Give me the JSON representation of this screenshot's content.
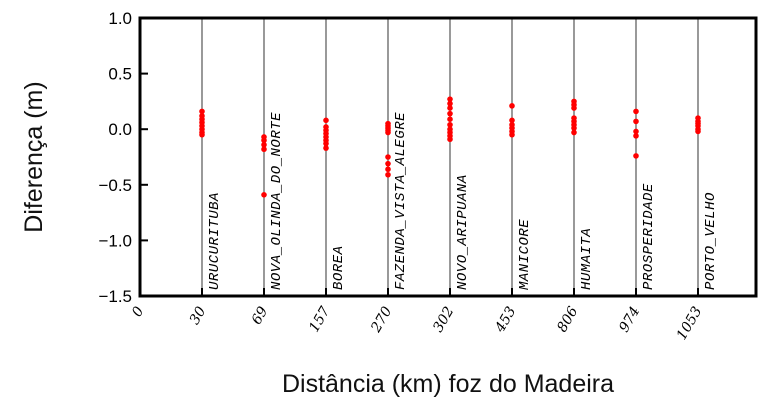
{
  "chart_data": {
    "type": "scatter",
    "xlabel": "Distância (km) foz do Madeira",
    "ylabel": "Diferença (m)",
    "ylim": [
      -1.5,
      1.0
    ],
    "yticks": [
      1.0,
      0.5,
      0.0,
      -0.5,
      -1.0,
      -1.5
    ],
    "ytick_labels": [
      "1.0",
      "0.5",
      "0.0",
      "−0.5",
      "−1.0",
      "−1.5"
    ],
    "xtick_labels": [
      "0",
      "30",
      "69",
      "157",
      "270",
      "302",
      "453",
      "806",
      "974",
      "1053"
    ],
    "marker_color": "#ff0000",
    "grid": "vertical lines at stations",
    "stations": [
      {
        "name": "URUCURITUBA",
        "km": "30",
        "values": [
          0.16,
          0.12,
          0.09,
          0.06,
          0.03,
          0.0,
          -0.03,
          -0.05
        ]
      },
      {
        "name": "NOVA_OLINDA_DO_NORTE",
        "km": "69",
        "values": [
          -0.07,
          -0.1,
          -0.14,
          -0.18,
          -0.59
        ]
      },
      {
        "name": "BOREA",
        "km": "157",
        "values": [
          0.08,
          0.02,
          -0.01,
          -0.04,
          -0.07,
          -0.1,
          -0.13,
          -0.17
        ]
      },
      {
        "name": "FAZENDA_VISTA_ALEGRE",
        "km": "270",
        "values": [
          0.05,
          0.03,
          0.01,
          -0.01,
          -0.03,
          -0.25,
          -0.31,
          -0.36,
          -0.41
        ]
      },
      {
        "name": "NOVO_ARIPUANA",
        "km": "302",
        "values": [
          0.27,
          0.23,
          0.19,
          0.14,
          0.09,
          0.04,
          0.0,
          -0.03,
          -0.06,
          -0.09
        ]
      },
      {
        "name": "MANICORE",
        "km": "453",
        "values": [
          0.21,
          0.08,
          0.04,
          0.01,
          -0.02,
          -0.05
        ]
      },
      {
        "name": "HUMAITA",
        "km": "806",
        "values": [
          0.25,
          0.22,
          0.19,
          0.1,
          0.07,
          0.04,
          0.01,
          -0.03
        ]
      },
      {
        "name": "PROSPERIDADE",
        "km": "974",
        "values": [
          0.16,
          0.07,
          -0.02,
          -0.06,
          -0.24
        ]
      },
      {
        "name": "PORTO_VELHO",
        "km": "1053",
        "values": [
          0.1,
          0.07,
          0.05,
          0.03,
          0.0,
          -0.02
        ]
      }
    ]
  }
}
